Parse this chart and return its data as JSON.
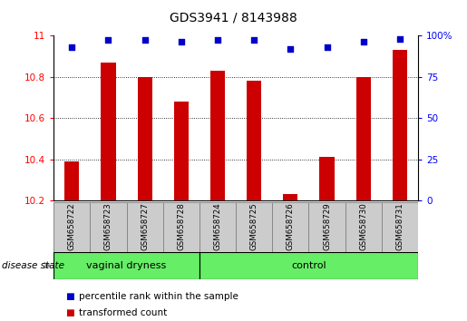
{
  "title": "GDS3941 / 8143988",
  "samples": [
    "GSM658722",
    "GSM658723",
    "GSM658727",
    "GSM658728",
    "GSM658724",
    "GSM658725",
    "GSM658726",
    "GSM658729",
    "GSM658730",
    "GSM658731"
  ],
  "bar_values": [
    10.39,
    10.87,
    10.8,
    10.68,
    10.83,
    10.78,
    10.23,
    10.41,
    10.8,
    10.93
  ],
  "dot_values": [
    93,
    97,
    97,
    96,
    97,
    97,
    92,
    93,
    96,
    98
  ],
  "bar_bottom": 10.2,
  "ylim_left": [
    10.2,
    11.0
  ],
  "ylim_right": [
    0,
    100
  ],
  "yticks_left": [
    10.2,
    10.4,
    10.6,
    10.8,
    11.0
  ],
  "ytick_labels_left": [
    "10.2",
    "10.4",
    "10.6",
    "10.8",
    "11"
  ],
  "yticks_right": [
    0,
    25,
    50,
    75,
    100
  ],
  "ytick_labels_right": [
    "0",
    "25",
    "50",
    "75",
    "100%"
  ],
  "bar_color": "#cc0000",
  "dot_color": "#0000cc",
  "groups": [
    {
      "label": "vaginal dryness",
      "start": 0,
      "end": 4
    },
    {
      "label": "control",
      "start": 4,
      "end": 10
    }
  ],
  "group_color": "#66ee66",
  "group_text_color": "#000000",
  "xlabel_label": "disease state",
  "background_color": "#ffffff",
  "legend_items": [
    {
      "label": "transformed count",
      "color": "#cc0000"
    },
    {
      "label": "percentile rank within the sample",
      "color": "#0000cc"
    }
  ],
  "bar_width": 0.4,
  "sample_label_color": "#cccccc",
  "title_fontsize": 10,
  "tick_fontsize": 7.5,
  "sample_fontsize": 6.2,
  "group_fontsize": 8,
  "legend_fontsize": 7.5
}
